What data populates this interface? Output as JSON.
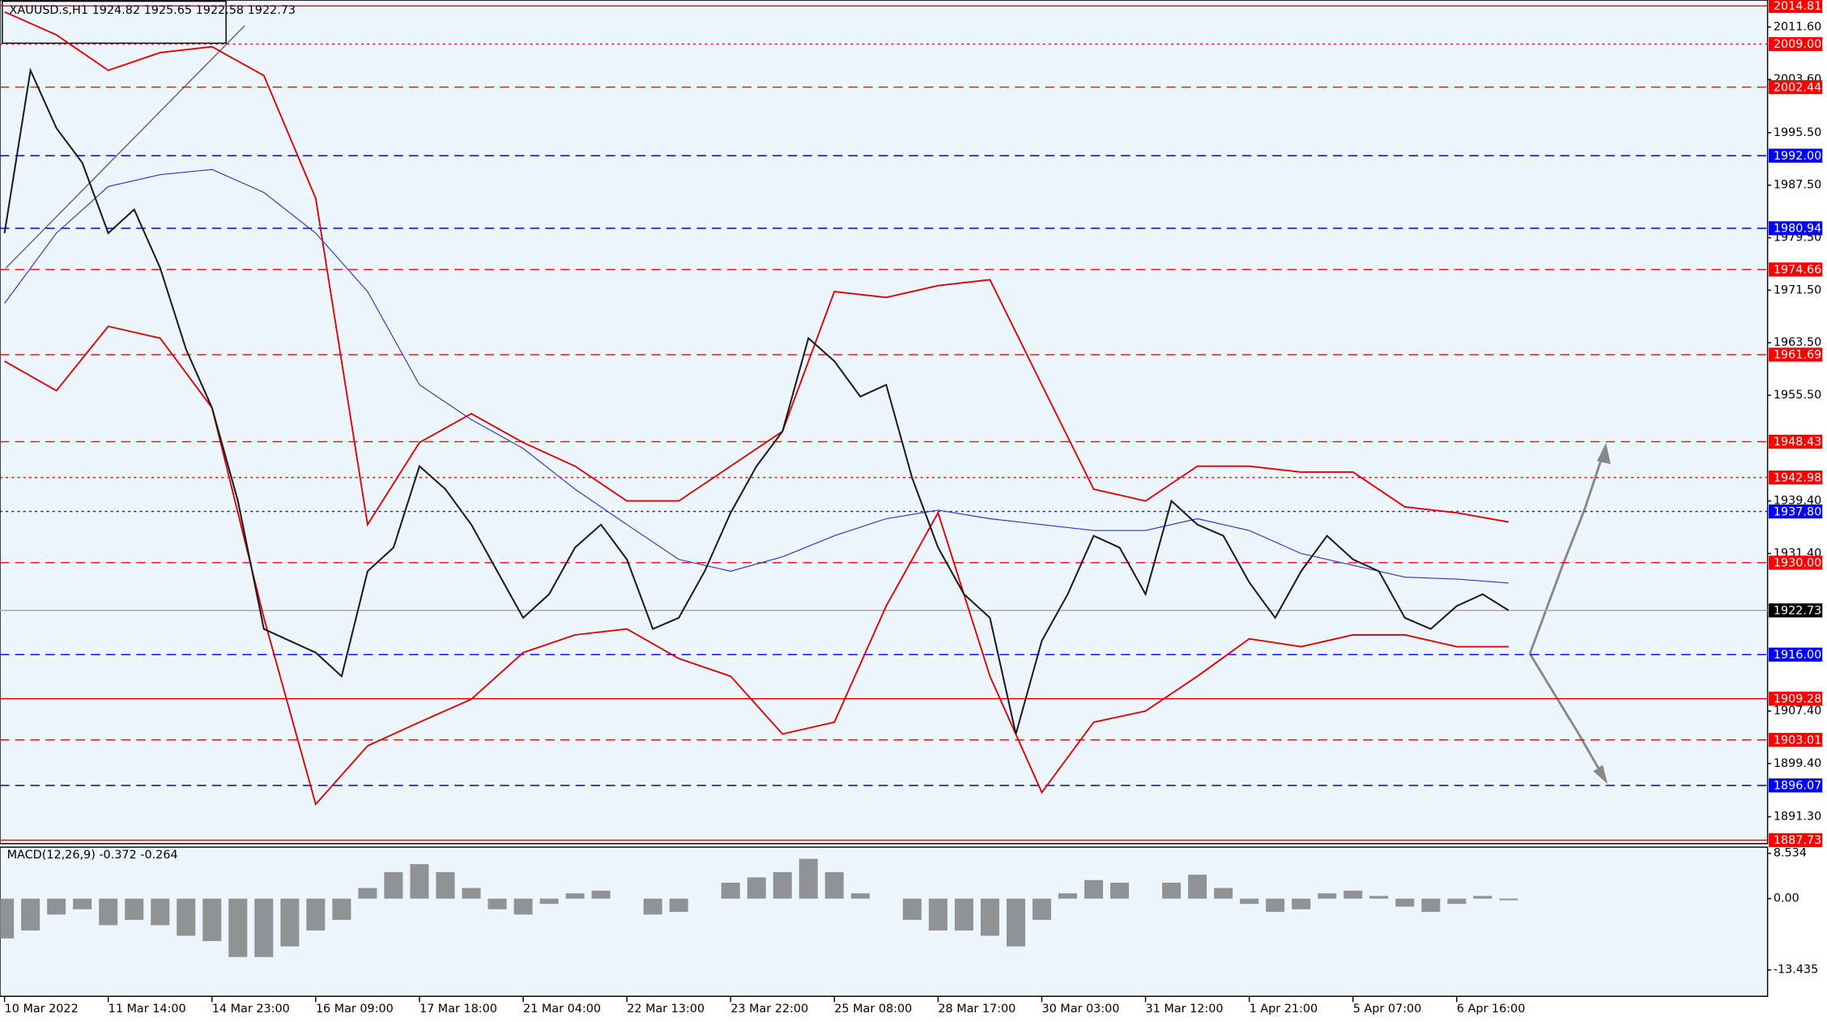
{
  "chart_data": [
    {
      "type": "line",
      "title": "XAUUSD.s,H1  1924.82 1925.65 1922.58 1922.73",
      "x": [
        0,
        8,
        16,
        24,
        32,
        40,
        48,
        56,
        64,
        72,
        80,
        88,
        96,
        104,
        112,
        120,
        128,
        136,
        144,
        152,
        160,
        168,
        176,
        184,
        192,
        200,
        208,
        216,
        224,
        232,
        240,
        248,
        256,
        264,
        272,
        280,
        288,
        296,
        304,
        312,
        320,
        328,
        336,
        344,
        352,
        360,
        368,
        376,
        384,
        392,
        400,
        408,
        416,
        424,
        432,
        440,
        448,
        456,
        464
      ],
      "values": [
        1980.2,
        2005.0,
        1996.2,
        1990.9,
        1980.2,
        1983.8,
        1974.9,
        1962.5,
        1953.6,
        1939.4,
        1919.9,
        1918.1,
        1916.3,
        1912.7,
        1928.7,
        1932.3,
        1944.7,
        1941.2,
        1935.8,
        1928.7,
        1921.6,
        1925.2,
        1932.3,
        1935.8,
        1930.5,
        1919.9,
        1921.6,
        1928.7,
        1937.6,
        1944.7,
        1950.0,
        1964.2,
        1960.7,
        1955.3,
        1957.1,
        1942.9,
        1932.3,
        1925.2,
        1921.6,
        1903.9,
        1918.1,
        1925.2,
        1934.1,
        1932.3,
        1925.2,
        1939.4,
        1935.8,
        1934.1,
        1927.0,
        1921.6,
        1928.7,
        1934.1,
        1930.5,
        1928.7,
        1921.6,
        1919.9,
        1923.4,
        1925.2,
        1922.73
      ],
      "color": "#1a1a1a",
      "overlay_x": [
        0,
        16,
        32,
        48,
        64,
        80,
        96,
        112,
        128,
        144,
        160,
        176,
        192,
        208,
        224,
        240,
        256,
        272,
        288,
        304,
        320,
        336,
        352,
        368,
        384,
        400,
        416,
        432,
        448,
        464
      ],
      "overlays": [
        {
          "color": "#e00000",
          "values": [
            2013.9,
            2010.4,
            2005.0,
            2007.7,
            2008.6,
            2004.2,
            1985.5,
            1935.8,
            1948.3,
            1952.7,
            1948.3,
            1944.7,
            1939.4,
            1939.4,
            1944.7,
            1950.0,
            1971.3,
            1970.4,
            1972.2,
            1973.1,
            1957.1,
            1941.2,
            1939.4,
            1944.7,
            1944.7,
            1943.8,
            1943.8,
            1938.5,
            1937.6,
            1936.2
          ]
        },
        {
          "color": "#e00000",
          "values": [
            1960.7,
            1956.2,
            1966.0,
            1964.2,
            1953.6,
            1921.6,
            1893.2,
            1902.1,
            1905.7,
            1909.2,
            1916.3,
            1919.0,
            1919.9,
            1915.4,
            1912.7,
            1903.9,
            1905.7,
            1923.4,
            1937.6,
            1912.7,
            1895.0,
            1905.7,
            1907.4,
            1912.7,
            1918.4,
            1917.2,
            1919.0,
            1919.0,
            1917.2,
            1917.2
          ]
        },
        {
          "color": "#3333cc",
          "values": [
            1969.5,
            1980.2,
            1987.3,
            1989.1,
            1989.9,
            1986.4,
            1980.2,
            1971.3,
            1957.1,
            1951.8,
            1947.4,
            1941.2,
            1935.8,
            1930.5,
            1928.7,
            1930.9,
            1934.1,
            1936.7,
            1938.0,
            1936.7,
            1935.8,
            1934.9,
            1934.9,
            1936.7,
            1934.9,
            1931.4,
            1929.6,
            1927.8,
            1927.5,
            1926.9
          ]
        }
      ],
      "xlim": [
        -1.4,
        543.9
      ],
      "xticks": [
        {
          "value": 0,
          "label": "10 Mar 2022"
        },
        {
          "value": 32,
          "label": "11 Mar 14:00"
        },
        {
          "value": 64,
          "label": "14 Mar 23:00"
        },
        {
          "value": 96,
          "label": "16 Mar 09:00"
        },
        {
          "value": 128,
          "label": "17 Mar 18:00"
        },
        {
          "value": 160,
          "label": "21 Mar 04:00"
        },
        {
          "value": 192,
          "label": "22 Mar 13:00"
        },
        {
          "value": 224,
          "label": "23 Mar 22:00"
        },
        {
          "value": 256,
          "label": "25 Mar 08:00"
        },
        {
          "value": 288,
          "label": "28 Mar 17:00"
        },
        {
          "value": 320,
          "label": "30 Mar 03:00"
        },
        {
          "value": 352,
          "label": "31 Mar 12:00"
        },
        {
          "value": 384,
          "label": "1 Apr 21:00"
        },
        {
          "value": 416,
          "label": "5 Apr 07:00"
        },
        {
          "value": 448,
          "label": "6 Apr 16:00"
        }
      ],
      "ylim": [
        1887.2,
        2015.7
      ],
      "yticks": [
        {
          "value": 2011.6,
          "label": "2011.60"
        },
        {
          "value": 2003.6,
          "label": "2003.60"
        },
        {
          "value": 1995.5,
          "label": "1995.50"
        },
        {
          "value": 1987.5,
          "label": "1987.50"
        },
        {
          "value": 1979.5,
          "label": "1979.50"
        },
        {
          "value": 1971.5,
          "label": "1971.50"
        },
        {
          "value": 1963.5,
          "label": "1963.50"
        },
        {
          "value": 1955.5,
          "label": "1955.50"
        },
        {
          "value": 1939.4,
          "label": "1939.40"
        },
        {
          "value": 1931.4,
          "label": "1931.40"
        },
        {
          "value": 1907.4,
          "label": "1907.40"
        },
        {
          "value": 1899.4,
          "label": "1899.40"
        },
        {
          "value": 1891.3,
          "label": "1891.30"
        }
      ],
      "levels": [
        {
          "value": 2014.81,
          "label": "2014.81",
          "color": "#ff0000",
          "dash": "solid"
        },
        {
          "value": 2009.0,
          "label": "2009.00",
          "color": "#ff0000",
          "dash": "dotted"
        },
        {
          "value": 2002.44,
          "label": "2002.44",
          "color": "#ff0000",
          "dash": "dashed"
        },
        {
          "value": 1992.0,
          "label": "1992.00",
          "color": "#0000ff",
          "dash": "dashed"
        },
        {
          "value": 1980.94,
          "label": "1980.94",
          "color": "#0000ff",
          "dash": "dashed"
        },
        {
          "value": 1974.66,
          "label": "1974.66",
          "color": "#ff0000",
          "dash": "dashed"
        },
        {
          "value": 1961.69,
          "label": "1961.69",
          "color": "#ff0000",
          "dash": "dashed"
        },
        {
          "value": 1948.43,
          "label": "1948.43",
          "color": "#ff0000",
          "dash": "dashed"
        },
        {
          "value": 1942.98,
          "label": "1942.98",
          "color": "#ff0000",
          "dash": "dotted"
        },
        {
          "value": 1937.8,
          "label": "1937.80",
          "color": "#0000ff",
          "dash": "dotted"
        },
        {
          "value": 1930.0,
          "label": "1930.00",
          "color": "#ff0000",
          "dash": "dashed"
        },
        {
          "value": 1922.73,
          "label": "1922.73",
          "color": "#000000",
          "dash": "solid"
        },
        {
          "value": 1916.0,
          "label": "1916.00",
          "color": "#0000ff",
          "dash": "dashed"
        },
        {
          "value": 1909.28,
          "label": "1909.28",
          "color": "#ff0000",
          "dash": "solid"
        },
        {
          "value": 1903.01,
          "label": "1903.01",
          "color": "#ff0000",
          "dash": "dashed"
        },
        {
          "value": 1896.07,
          "label": "1896.07",
          "color": "#0000ff",
          "dash": "dashed"
        },
        {
          "value": 1887.73,
          "label": "1887.73",
          "color": "#ff0000",
          "dash": "solid"
        }
      ]
    },
    {
      "type": "bar",
      "title": "MACD(12,26,9) -0.372 -0.264",
      "x": [
        0,
        8,
        16,
        24,
        32,
        40,
        48,
        56,
        64,
        72,
        80,
        88,
        96,
        104,
        112,
        120,
        128,
        136,
        144,
        152,
        160,
        168,
        176,
        184,
        192,
        200,
        208,
        216,
        224,
        232,
        240,
        248,
        256,
        264,
        272,
        280,
        288,
        296,
        304,
        312,
        320,
        328,
        336,
        344,
        352,
        360,
        368,
        376,
        384,
        392,
        400,
        408,
        416,
        424,
        432,
        440,
        448,
        456,
        464
      ],
      "values": [
        -7.5,
        -6,
        -3,
        -2,
        -5,
        -4,
        -5,
        -7,
        -8,
        -11,
        -11,
        -9,
        -6,
        -4,
        2,
        5,
        6.5,
        5,
        2,
        -2,
        -3,
        -1,
        1,
        1.5,
        0,
        -3,
        -2.5,
        0,
        3,
        4,
        5,
        7.5,
        5,
        1,
        0,
        -4,
        -6,
        -6,
        -7,
        -9,
        -4,
        1,
        3.5,
        3,
        0,
        3,
        4.5,
        2,
        -1,
        -2.5,
        -2,
        1,
        1.5,
        0.5,
        -1.5,
        -2.5,
        -1,
        0.5,
        -0.3
      ],
      "color": "#808080",
      "xlim": [
        -1.4,
        543.9
      ],
      "ylim": [
        -18.4,
        9.7
      ],
      "yticks": [
        8.534,
        {
          "value": 0,
          "label": "0.00"
        },
        -13.435
      ]
    }
  ]
}
